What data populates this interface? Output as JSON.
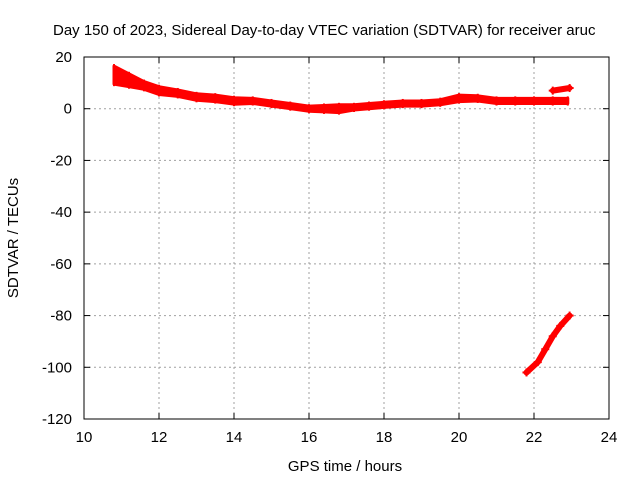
{
  "chart_data": {
    "type": "scatter",
    "title": "Day 150 of 2023, Sidereal Day-to-day VTEC variation (SDTVAR) for receiver aruc",
    "xlabel": "GPS time / hours",
    "ylabel": "SDTVAR / TECUs",
    "xlim": [
      10,
      24
    ],
    "ylim": [
      -120,
      20
    ],
    "xticks": [
      10,
      12,
      14,
      16,
      18,
      20,
      22,
      24
    ],
    "yticks": [
      -120,
      -100,
      -80,
      -60,
      -40,
      -20,
      0,
      20
    ],
    "grid": true,
    "legend": "none",
    "series": [
      {
        "name": "SDTVAR",
        "color": "#ff0000",
        "band": [
          {
            "x": 10.8,
            "y": 13,
            "spread": 7
          },
          {
            "x": 11.2,
            "y": 11,
            "spread": 5
          },
          {
            "x": 11.6,
            "y": 9,
            "spread": 3
          },
          {
            "x": 12.0,
            "y": 7,
            "spread": 3
          },
          {
            "x": 12.5,
            "y": 6,
            "spread": 2.5
          },
          {
            "x": 13.0,
            "y": 4.5,
            "spread": 2.5
          },
          {
            "x": 13.5,
            "y": 4,
            "spread": 2.5
          },
          {
            "x": 14.0,
            "y": 3,
            "spread": 2.5
          },
          {
            "x": 14.5,
            "y": 3,
            "spread": 2
          },
          {
            "x": 15.0,
            "y": 2,
            "spread": 2
          },
          {
            "x": 15.5,
            "y": 1,
            "spread": 2
          },
          {
            "x": 16.0,
            "y": 0,
            "spread": 2
          },
          {
            "x": 16.4,
            "y": 0,
            "spread": 2.5
          },
          {
            "x": 16.8,
            "y": 0,
            "spread": 3
          },
          {
            "x": 17.2,
            "y": 0.5,
            "spread": 2
          },
          {
            "x": 17.6,
            "y": 1,
            "spread": 2
          },
          {
            "x": 18.0,
            "y": 1.5,
            "spread": 2
          },
          {
            "x": 18.5,
            "y": 2,
            "spread": 2
          },
          {
            "x": 19.0,
            "y": 2,
            "spread": 2
          },
          {
            "x": 19.5,
            "y": 2.5,
            "spread": 2
          },
          {
            "x": 20.0,
            "y": 4,
            "spread": 2.5
          },
          {
            "x": 20.5,
            "y": 4,
            "spread": 2
          },
          {
            "x": 21.0,
            "y": 3,
            "spread": 2
          },
          {
            "x": 21.5,
            "y": 3,
            "spread": 2
          },
          {
            "x": 22.0,
            "y": 3,
            "spread": 2
          },
          {
            "x": 22.5,
            "y": 3,
            "spread": 2
          },
          {
            "x": 22.9,
            "y": 3,
            "spread": 2
          }
        ],
        "segments": [
          [
            {
              "x": 22.5,
              "y": 7
            },
            {
              "x": 22.95,
              "y": 8
            }
          ],
          [
            {
              "x": 21.8,
              "y": -102
            },
            {
              "x": 22.1,
              "y": -98
            },
            {
              "x": 22.3,
              "y": -93
            },
            {
              "x": 22.5,
              "y": -88
            },
            {
              "x": 22.7,
              "y": -84
            },
            {
              "x": 22.95,
              "y": -80
            }
          ]
        ]
      }
    ]
  }
}
